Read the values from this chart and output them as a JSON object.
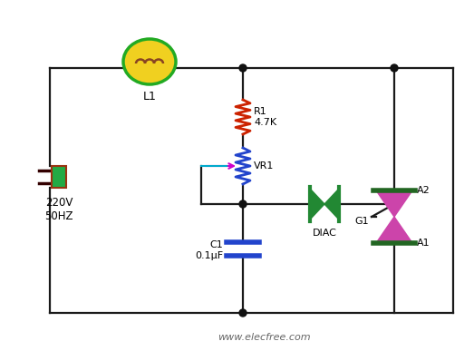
{
  "bg_color": "#ffffff",
  "wire_color": "#1a1a1a",
  "resistor_color": "#cc2200",
  "vr_color": "#2244cc",
  "capacitor_color": "#2244cc",
  "lamp_body_color": "#f0d020",
  "lamp_outline_color": "#22aa22",
  "lamp_coil_color": "#884422",
  "triac_body_color": "#cc44aa",
  "triac_stripe_color": "#226622",
  "diac_color": "#228833",
  "plug_color": "#883322",
  "plug_green": "#22aa44",
  "node_color": "#111111",
  "wiper_color": "#cc00cc",
  "wiper_line_color": "#00aacc",
  "watermark": "www.elecfree.com",
  "label_220v": "220V\n50HZ",
  "label_L1": "L1",
  "label_R1": "R1\n4.7K",
  "label_VR1": "VR1",
  "label_C1": "C1\n0.1μF",
  "label_DIAC": "DIAC",
  "label_A2": "A2",
  "label_A1": "A1",
  "label_G1": "G1",
  "fig_w": 5.23,
  "fig_h": 3.87,
  "dpi": 100
}
